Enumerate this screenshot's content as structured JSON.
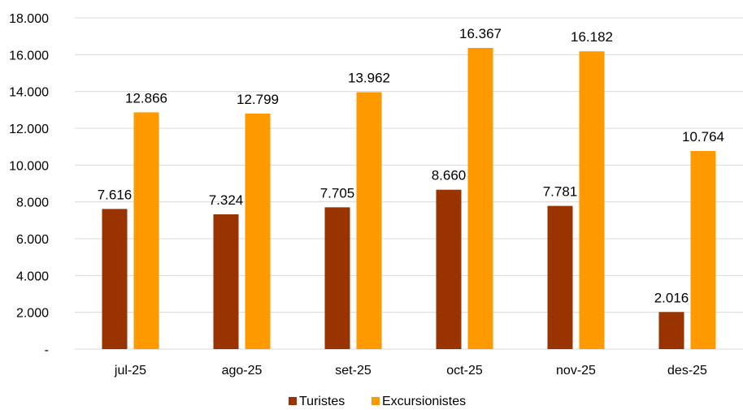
{
  "chart_data": {
    "type": "bar",
    "categories": [
      "jul-25",
      "ago-25",
      "set-25",
      "oct-25",
      "nov-25",
      "des-25"
    ],
    "series": [
      {
        "name": "Turistes",
        "color": "#993300",
        "values": [
          7616,
          7324,
          7705,
          8660,
          7781,
          2016
        ],
        "labels": [
          "7.616",
          "7.324",
          "7.705",
          "8.660",
          "7.781",
          "2.016"
        ]
      },
      {
        "name": "Excursionistes",
        "color": "#FF9900",
        "values": [
          12866,
          12799,
          13962,
          16367,
          16182,
          10764
        ],
        "labels": [
          "12.866",
          "12.799",
          "13.962",
          "16.367",
          "16.182",
          "10.764"
        ]
      }
    ],
    "ylim": [
      0,
      18000
    ],
    "yticks": [
      0,
      2000,
      4000,
      6000,
      8000,
      10000,
      12000,
      14000,
      16000,
      18000
    ],
    "ytick_labels": [
      "-",
      "2.000",
      "4.000",
      "6.000",
      "8.000",
      "10.000",
      "12.000",
      "14.000",
      "16.000",
      "18.000"
    ],
    "grid": true,
    "legend": "bottom-center",
    "title": "",
    "xlabel": "",
    "ylabel": ""
  }
}
